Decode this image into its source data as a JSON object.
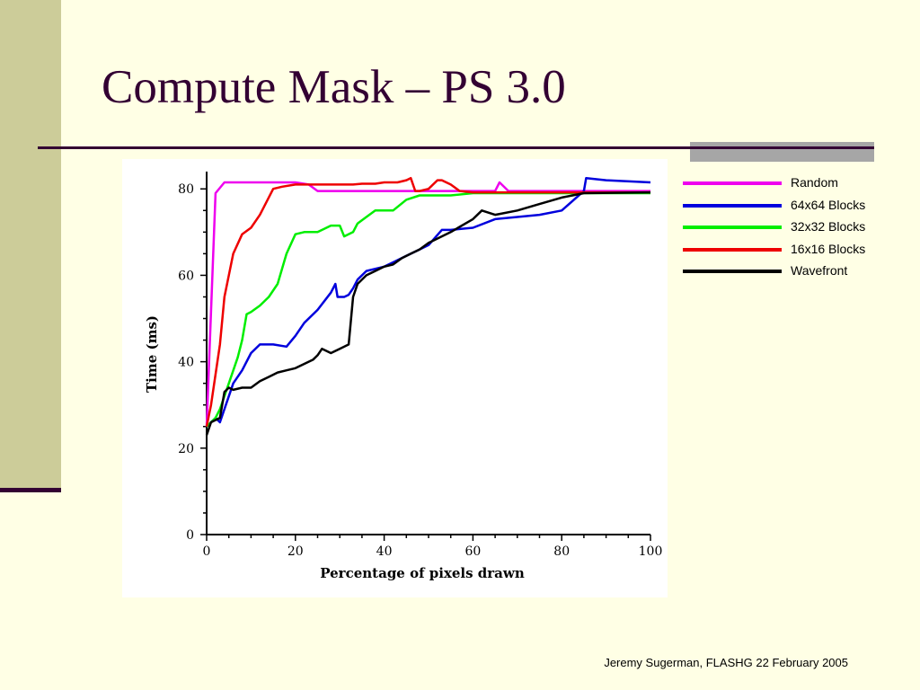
{
  "slide": {
    "title": "Compute Mask – PS 3.0",
    "footer": "Jeremy Sugerman, FLASHG 22 February 2005",
    "colors": {
      "background": "#FFFFE5",
      "sidebar": "#CCCC99",
      "rule": "#330033",
      "rule_accent": "#A6A6A6"
    }
  },
  "chart_data": {
    "type": "line",
    "xlabel": "Percentage of pixels drawn",
    "ylabel": "Time (ms)",
    "xlim": [
      0,
      100
    ],
    "ylim": [
      0,
      84
    ],
    "xticks": [
      "0",
      "20",
      "40",
      "60",
      "80",
      "100"
    ],
    "yticks": [
      "0",
      "20",
      "40",
      "60",
      "80"
    ],
    "legend_position": "right",
    "grid": false,
    "series": [
      {
        "name": "Random",
        "color": "#EE00EE",
        "x": [
          0,
          2,
          4,
          20,
          23,
          25,
          30,
          40,
          50,
          60,
          65,
          66,
          68,
          70,
          100
        ],
        "y": [
          25,
          79,
          81.5,
          81.5,
          81,
          79.5,
          79.5,
          79.5,
          79.5,
          79.5,
          79.5,
          81.5,
          79.5,
          79.5,
          79.5
        ]
      },
      {
        "name": "64x64 Blocks",
        "color": "#0000DD",
        "x": [
          0,
          2,
          3,
          6,
          8,
          10,
          12,
          15,
          18,
          20,
          22,
          25,
          28,
          29,
          29.5,
          30,
          31,
          32,
          33,
          34,
          36,
          40,
          42,
          45,
          48,
          50,
          53,
          55,
          60,
          65,
          70,
          75,
          80,
          85,
          85.5,
          90,
          100
        ],
        "y": [
          25,
          27,
          26,
          35,
          38,
          42,
          44,
          44,
          43.5,
          46,
          49,
          52,
          56,
          58,
          55,
          55,
          55,
          55.5,
          57,
          59,
          61,
          62,
          63,
          64.5,
          66,
          67,
          70.5,
          70.5,
          71,
          73,
          73.5,
          74,
          75,
          79.5,
          82.5,
          82,
          81.5
        ]
      },
      {
        "name": "32x32 Blocks",
        "color": "#00EE00",
        "x": [
          0,
          2,
          3,
          5,
          7,
          8,
          9,
          10,
          12,
          14,
          16,
          18,
          20,
          22,
          25,
          28,
          30,
          31,
          33,
          34,
          36,
          38,
          40,
          42,
          45,
          48,
          50,
          55,
          60,
          100
        ],
        "y": [
          25,
          27,
          29,
          35,
          41,
          45,
          51,
          51.5,
          53,
          55,
          58,
          65,
          69.5,
          70,
          70,
          71.5,
          71.5,
          69,
          70,
          72,
          73.5,
          75,
          75,
          75,
          77.5,
          78.5,
          78.5,
          78.5,
          79,
          79
        ]
      },
      {
        "name": "16x16 Blocks",
        "color": "#EE0000",
        "x": [
          0,
          1,
          3,
          4,
          6,
          8,
          10,
          12,
          15,
          17,
          20,
          25,
          30,
          33,
          35,
          38,
          40,
          43,
          45,
          46,
          47,
          48,
          50,
          52,
          53,
          55,
          57,
          60,
          65,
          100
        ],
        "y": [
          25,
          30,
          44,
          55,
          65,
          69.5,
          71,
          74,
          80,
          80.5,
          81,
          81,
          81,
          81,
          81.2,
          81.2,
          81.5,
          81.5,
          82,
          82.5,
          79.5,
          79.5,
          80,
          82,
          82,
          81,
          79.5,
          79.2,
          79.2,
          79.2
        ]
      },
      {
        "name": "Wavefront",
        "color": "#000000",
        "x": [
          0,
          1,
          3,
          4,
          5,
          6,
          8,
          10,
          12,
          14,
          16,
          18,
          20,
          22,
          24,
          25,
          26,
          28,
          30,
          32,
          33,
          34,
          36,
          38,
          40,
          42,
          44,
          46,
          48,
          50,
          55,
          60,
          62,
          65,
          70,
          75,
          80,
          85,
          100
        ],
        "y": [
          23,
          26,
          27,
          33,
          34,
          33.5,
          34,
          34,
          35.5,
          36.5,
          37.5,
          38,
          38.5,
          39.5,
          40.5,
          41.5,
          43,
          42,
          43,
          44,
          55,
          58,
          60,
          61,
          62,
          62.5,
          64,
          65,
          66,
          67.5,
          70,
          73,
          75,
          74,
          75,
          76.5,
          78,
          79,
          79.2
        ]
      }
    ]
  }
}
